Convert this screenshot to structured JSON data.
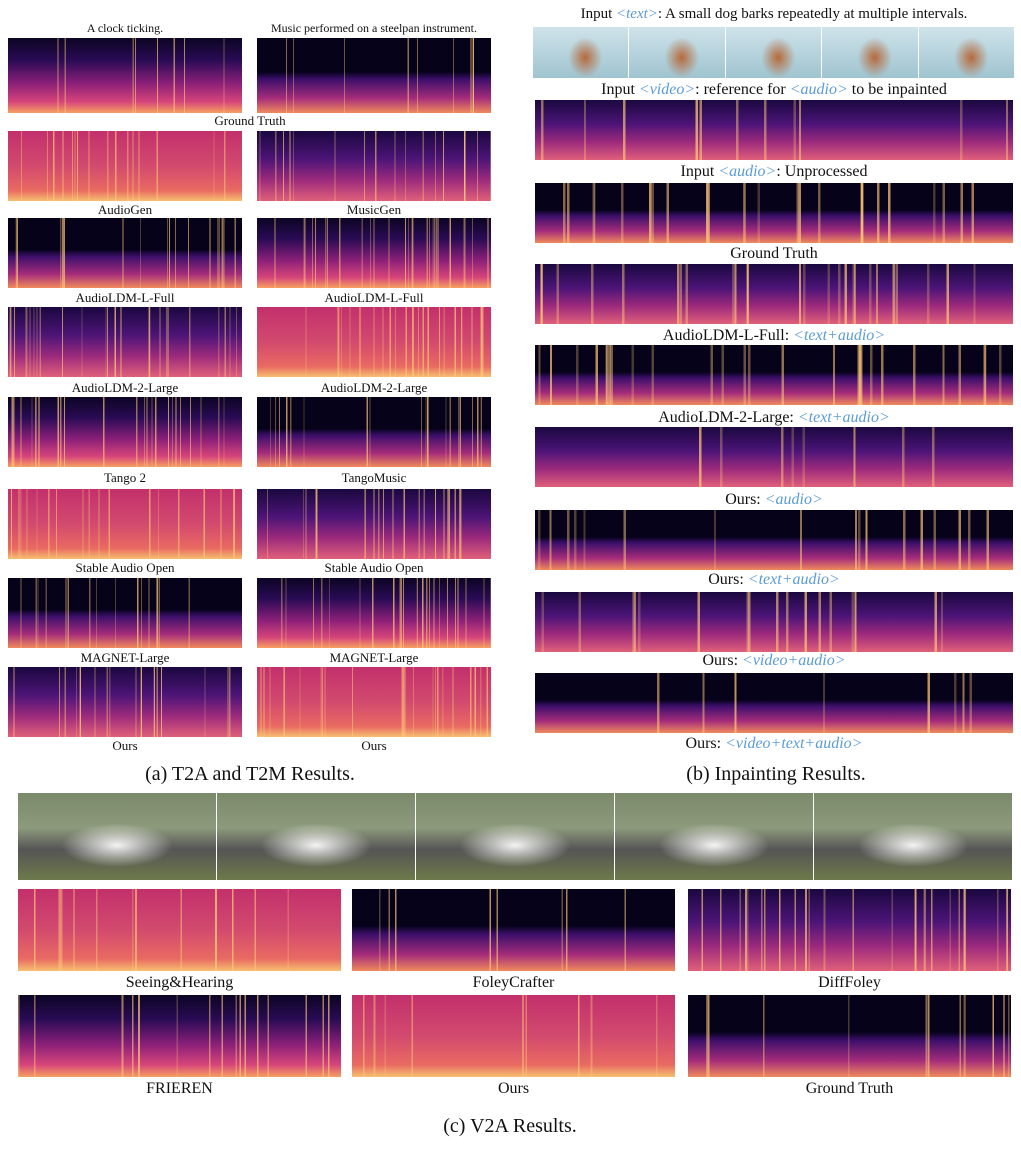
{
  "panel_a": {
    "caption": "(a) T2A and T2M Results.",
    "prompts": [
      "A clock ticking.",
      "Music performed on a steelpan instrument."
    ],
    "shared_label": "Ground Truth",
    "rows": [
      [
        "AudioGen",
        "MusicGen"
      ],
      [
        "AudioLDM-L-Full",
        "AudioLDM-L-Full"
      ],
      [
        "AudioLDM-2-Large",
        "AudioLDM-2-Large"
      ],
      [
        "Tango 2",
        "TangoMusic"
      ],
      [
        "Stable Audio Open",
        "Stable Audio Open"
      ],
      [
        "MAGNET-Large",
        "MAGNET-Large"
      ],
      [
        "Ours",
        "Ours"
      ]
    ]
  },
  "panel_b": {
    "caption": "(b) Inpainting Results.",
    "header": [
      "Input ",
      "<text>",
      ": A small dog barks repeatedly at multiple intervals."
    ],
    "labels": [
      [
        "Input ",
        "<video>",
        ": reference for ",
        "<audio>",
        " to be inpainted"
      ],
      [
        "Input ",
        "<audio>",
        ": Unprocessed"
      ],
      [
        "Ground Truth"
      ],
      [
        "AudioLDM-L-Full: ",
        "<text+audio>"
      ],
      [
        "AudioLDM-2-Large: ",
        "<text+audio>"
      ],
      [
        "Ours: ",
        "<audio>"
      ],
      [
        "Ours: ",
        "<text+audio>"
      ],
      [
        "Ours: ",
        "<video+audio>"
      ],
      [
        "Ours: ",
        "<video+text+audio>"
      ]
    ]
  },
  "panel_c": {
    "caption": "(c) V2A Results.",
    "labels": [
      "Seeing&Hearing",
      "FoleyCrafter",
      "DiffFoley",
      "FRIEREN",
      "Ours",
      "Ground Truth"
    ]
  }
}
